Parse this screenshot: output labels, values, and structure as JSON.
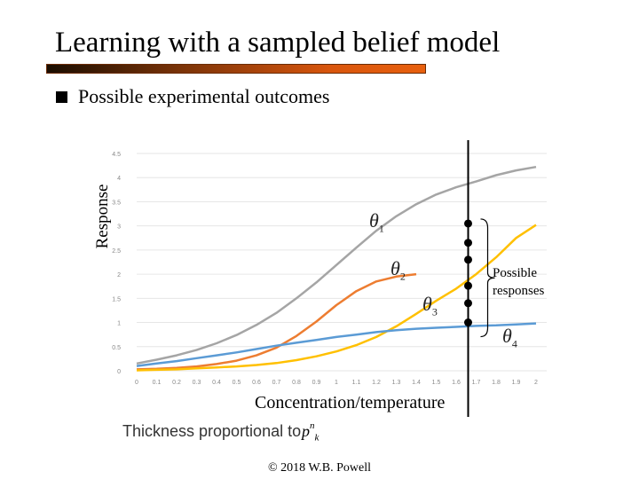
{
  "slide": {
    "title": "Learning with a sampled belief model",
    "bullet": "Possible experimental outcomes",
    "copyright": "© 2018 W.B. Powell"
  },
  "annotations": {
    "possible_responses_line1": "Possible",
    "possible_responses_line2": "responses",
    "thickness_text": "Thickness proportional to",
    "pk_symbol": "p",
    "pk_superscript": "n",
    "pk_subscript": "k",
    "theta_symbol": "θ",
    "theta_labels": [
      "1",
      "2",
      "3",
      "4"
    ]
  },
  "colors": {
    "theta1": "#a5a5a5",
    "theta2": "#ed7d31",
    "theta3": "#ffc000",
    "theta4": "#5b9bd5",
    "title_bar": "#e8600e"
  },
  "chart_data": {
    "type": "line",
    "xlabel": "Concentration/temperature",
    "ylabel": "Response",
    "xlim": [
      0,
      2
    ],
    "ylim": [
      0,
      4.5
    ],
    "x_ticks": [
      "0",
      "0.1",
      "0.2",
      "0.3",
      "0.4",
      "0.5",
      "0.6",
      "0.7",
      "0.8",
      "0.9",
      "1",
      "1.1",
      "1.2",
      "1.3",
      "1.4",
      "1.5",
      "1.6",
      "1.7",
      "1.8",
      "1.9",
      "2"
    ],
    "y_ticks": [
      "0",
      "0.5",
      "1",
      "1.5",
      "2",
      "2.5",
      "3",
      "3.5",
      "4",
      "4.5"
    ],
    "grid": true,
    "x": [
      0,
      0.1,
      0.2,
      0.3,
      0.4,
      0.5,
      0.6,
      0.7,
      0.8,
      0.9,
      1.0,
      1.1,
      1.2,
      1.3,
      1.4,
      1.5,
      1.6,
      1.7,
      1.8,
      1.9,
      2.0
    ],
    "series": [
      {
        "values": [
          0.15,
          0.23,
          0.32,
          0.43,
          0.57,
          0.74,
          0.95,
          1.2,
          1.5,
          1.83,
          2.19,
          2.55,
          2.9,
          3.2,
          3.45,
          3.65,
          3.8,
          3.92,
          4.05,
          4.15,
          4.22
        ]
      },
      {
        "values": [
          0.03,
          0.04,
          0.06,
          0.09,
          0.14,
          0.21,
          0.32,
          0.48,
          0.72,
          1.02,
          1.36,
          1.65,
          1.85,
          1.95,
          2.0,
          null,
          null,
          null,
          null,
          null,
          null
        ]
      },
      {
        "values": [
          0.01,
          0.02,
          0.03,
          0.05,
          0.07,
          0.09,
          0.12,
          0.16,
          0.22,
          0.3,
          0.4,
          0.53,
          0.7,
          0.92,
          1.18,
          1.45,
          1.7,
          2.0,
          2.35,
          2.75,
          3.02
        ]
      },
      {
        "values": [
          0.1,
          0.15,
          0.2,
          0.26,
          0.32,
          0.38,
          0.45,
          0.52,
          0.58,
          0.64,
          0.7,
          0.75,
          0.8,
          0.84,
          0.87,
          0.89,
          0.91,
          0.93,
          0.94,
          0.96,
          0.98
        ]
      }
    ],
    "decision_line_x": 1.66,
    "response_points_y": [
      3.05,
      2.65,
      2.3,
      1.76,
      1.4,
      1.0
    ]
  }
}
